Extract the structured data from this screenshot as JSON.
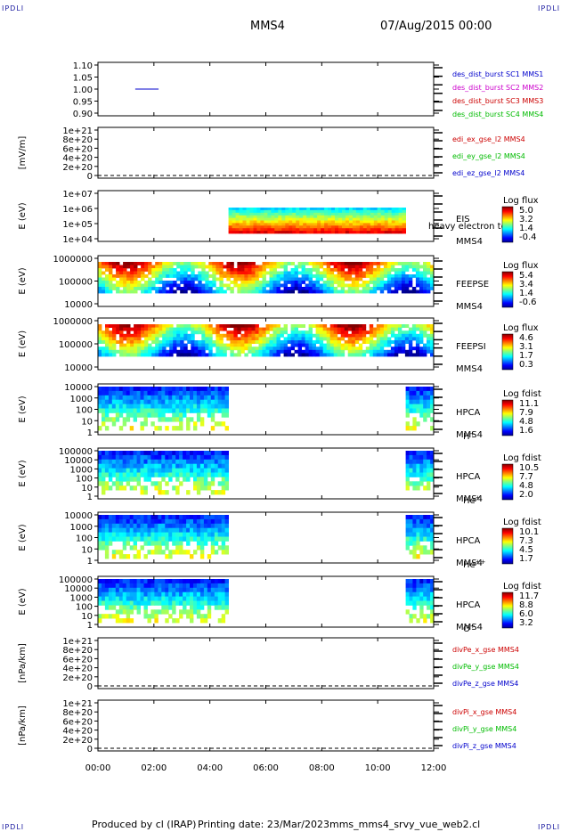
{
  "corner_tag": "IPDLI",
  "header": {
    "spacecraft": "MMS4",
    "date_time": "07/Aug/2015 00:00"
  },
  "footer": {
    "produced_by": "Produced by cl (IRAP)",
    "printing_date": "Printing date: 23/Mar/2023",
    "script_name": "mms_mms4_srvy_vue_web2.cl"
  },
  "colors": {
    "blue": "#0000cc",
    "magenta": "#cc00cc",
    "red": "#cc0000",
    "green": "#00bb00"
  },
  "chart_data": [
    {
      "type": "line",
      "panel": "burst_flags",
      "ylim": [
        0.9,
        1.1
      ],
      "y_ticks": [
        "1.10",
        "1.05",
        "1.00",
        "0.95",
        "0.90"
      ],
      "series": [
        {
          "name": "des_dist_burst SC1 MMS1",
          "color": "#0000cc",
          "x": [
            "01:20",
            "02:10"
          ],
          "values": [
            1.0,
            1.0
          ]
        },
        {
          "name": "des_dist_burst SC2 MMS2",
          "color": "#cc00cc",
          "x": [],
          "values": []
        },
        {
          "name": "des_dist_burst SC3 MMS3",
          "color": "#cc0000",
          "x": [],
          "values": []
        },
        {
          "name": "des_dist_burst SC4 MMS4",
          "color": "#00bb00",
          "x": [],
          "values": []
        }
      ]
    },
    {
      "type": "line",
      "panel": "edi",
      "ylabel": "[mV/m]",
      "y_ticks": [
        "1e+21",
        "8e+20",
        "6e+20",
        "4e+20",
        "2e+20",
        "0"
      ],
      "series": [
        {
          "name": "edi_ex_gse_l2 MMS4",
          "color": "#cc0000"
        },
        {
          "name": "edi_ey_gse_l2 MMS4",
          "color": "#00bb00"
        },
        {
          "name": "edi_ez_gse_l2 MMS4",
          "color": "#0000cc"
        }
      ]
    },
    {
      "type": "heatmap",
      "panel": "eis",
      "ylabel": "E (eV)",
      "y_ticks": [
        "1e+07",
        "1e+06",
        "1e+05",
        "1e+04"
      ],
      "instrument": "EIS",
      "species": "heavy electron tof",
      "spacecraft": "MMS4",
      "colorbar_title": "Log flux",
      "colorbar_ticks": [
        "5.0",
        "3.2",
        "1.4",
        "-0.4"
      ],
      "coverage": [
        [
          "04:40",
          "11:00"
        ]
      ]
    },
    {
      "type": "heatmap",
      "panel": "feeps_electron",
      "ylabel": "E (eV)",
      "y_ticks": [
        "1000000",
        "100000",
        "10000"
      ],
      "instrument": "FEEPSE",
      "spacecraft": "MMS4",
      "colorbar_title": "Log flux",
      "colorbar_ticks": [
        "5.4",
        "3.4",
        "1.4",
        "-0.6"
      ],
      "coverage": [
        [
          "00:00",
          "12:00"
        ]
      ]
    },
    {
      "type": "heatmap",
      "panel": "feeps_ion",
      "ylabel": "E (eV)",
      "y_ticks": [
        "1000000",
        "100000",
        "10000"
      ],
      "instrument": "FEEPSI",
      "spacecraft": "MMS4",
      "colorbar_title": "Log flux",
      "colorbar_ticks": [
        "4.6",
        "3.1",
        "1.7",
        "0.3"
      ],
      "coverage": [
        [
          "00:00",
          "12:00"
        ]
      ]
    },
    {
      "type": "heatmap",
      "panel": "hpca_h",
      "ylabel": "E (eV)",
      "y_ticks": [
        "10000",
        "1000",
        "100",
        "10",
        "1"
      ],
      "instrument": "HPCA",
      "spacecraft": "MMS4",
      "species_base": "H",
      "species_charge": "+",
      "colorbar_title": "Log fdist",
      "colorbar_ticks": [
        "11.1",
        "7.9",
        "4.8",
        "1.6"
      ],
      "coverage": [
        [
          "00:00",
          "04:40"
        ],
        [
          "11:00",
          "12:00"
        ]
      ]
    },
    {
      "type": "heatmap",
      "panel": "hpca_he1",
      "ylabel": "E (eV)",
      "y_ticks": [
        "100000",
        "10000",
        "1000",
        "100",
        "10",
        "1"
      ],
      "instrument": "HPCA",
      "spacecraft": "MMS4",
      "species_base": "He",
      "species_charge": "+",
      "colorbar_title": "Log fdist",
      "colorbar_ticks": [
        "10.5",
        "7.7",
        "4.8",
        "2.0"
      ],
      "coverage": [
        [
          "00:00",
          "04:40"
        ],
        [
          "11:00",
          "12:00"
        ]
      ]
    },
    {
      "type": "heatmap",
      "panel": "hpca_he2",
      "ylabel": "E (eV)",
      "y_ticks": [
        "10000",
        "1000",
        "100",
        "10",
        "1"
      ],
      "instrument": "HPCA",
      "spacecraft": "MMS4",
      "species_base": "He",
      "species_charge": "++",
      "colorbar_title": "Log fdist",
      "colorbar_ticks": [
        "10.1",
        "7.3",
        "4.5",
        "1.7"
      ],
      "coverage": [
        [
          "00:00",
          "04:40"
        ],
        [
          "11:00",
          "12:00"
        ]
      ]
    },
    {
      "type": "heatmap",
      "panel": "hpca_o",
      "ylabel": "E (eV)",
      "y_ticks": [
        "100000",
        "10000",
        "1000",
        "100",
        "10",
        "1"
      ],
      "instrument": "HPCA",
      "spacecraft": "MMS4",
      "species_base": "O",
      "species_charge": "+",
      "colorbar_title": "Log fdist",
      "colorbar_ticks": [
        "11.7",
        "8.8",
        "6.0",
        "3.2"
      ],
      "coverage": [
        [
          "00:00",
          "04:40"
        ],
        [
          "11:00",
          "12:00"
        ]
      ]
    },
    {
      "type": "line",
      "panel": "divpe",
      "ylabel": "[nPa/km]",
      "y_ticks": [
        "1e+21",
        "8e+20",
        "6e+20",
        "4e+20",
        "2e+20",
        "0"
      ],
      "series": [
        {
          "name": "divPe_x_gse MMS4",
          "color": "#cc0000"
        },
        {
          "name": "divPe_y_gse MMS4",
          "color": "#00bb00"
        },
        {
          "name": "divPe_z_gse MMS4",
          "color": "#0000cc"
        }
      ]
    },
    {
      "type": "line",
      "panel": "divpi",
      "ylabel": "[nPa/km]",
      "y_ticks": [
        "1e+21",
        "8e+20",
        "6e+20",
        "4e+20",
        "2e+20",
        "0"
      ],
      "series": [
        {
          "name": "divPi_x_gse MMS4",
          "color": "#cc0000"
        },
        {
          "name": "divPi_y_gse MMS4",
          "color": "#00bb00"
        },
        {
          "name": "divPi_z_gse MMS4",
          "color": "#0000cc"
        }
      ]
    }
  ],
  "time_axis": {
    "range": [
      "00:00",
      "12:00"
    ],
    "ticks": [
      "00:00",
      "02:00",
      "04:00",
      "06:00",
      "08:00",
      "10:00",
      "12:00"
    ]
  }
}
